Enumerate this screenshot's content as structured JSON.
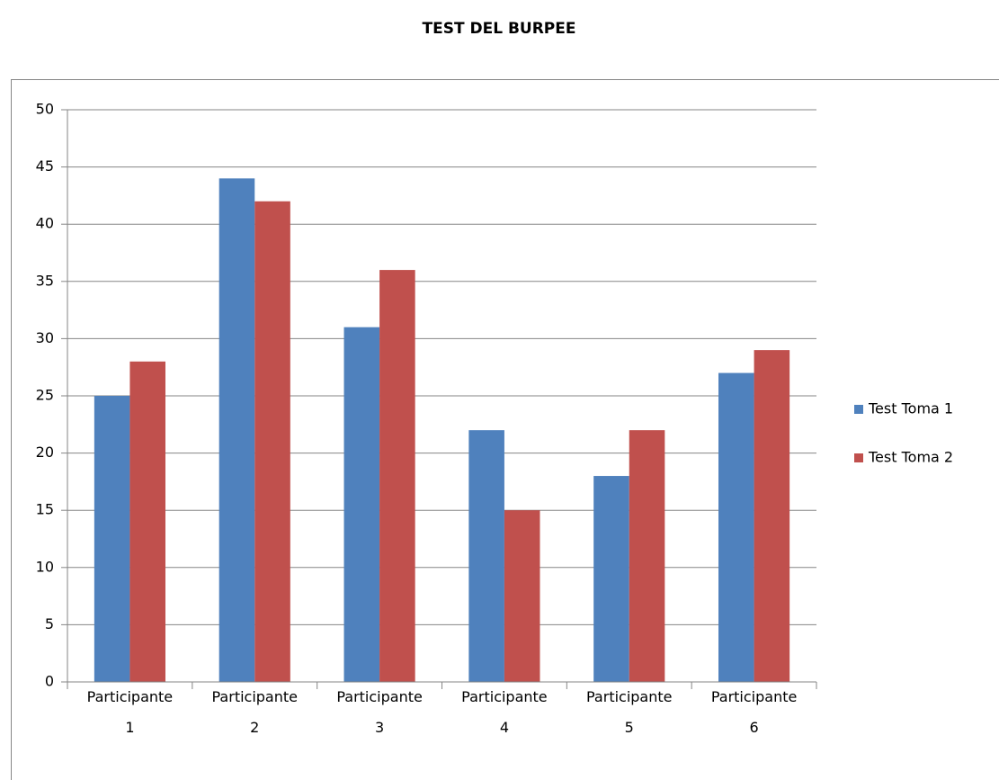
{
  "chart_data": {
    "type": "bar",
    "title": "TEST DEL BURPEE",
    "categories": [
      "Participante 1",
      "Participante 2",
      "Participante 3",
      "Participante 4",
      "Participante 5",
      "Participante 6"
    ],
    "series": [
      {
        "name": "Test Toma 1",
        "color": "#4f81bd",
        "values": [
          25,
          44,
          31,
          22,
          18,
          27
        ]
      },
      {
        "name": "Test Toma 2",
        "color": "#c0504d",
        "values": [
          28,
          42,
          36,
          15,
          22,
          29
        ]
      }
    ],
    "ylim": [
      0,
      50
    ],
    "yticks": [
      0,
      5,
      10,
      15,
      20,
      25,
      30,
      35,
      40,
      45,
      50
    ],
    "grid": true,
    "legend": "right"
  }
}
